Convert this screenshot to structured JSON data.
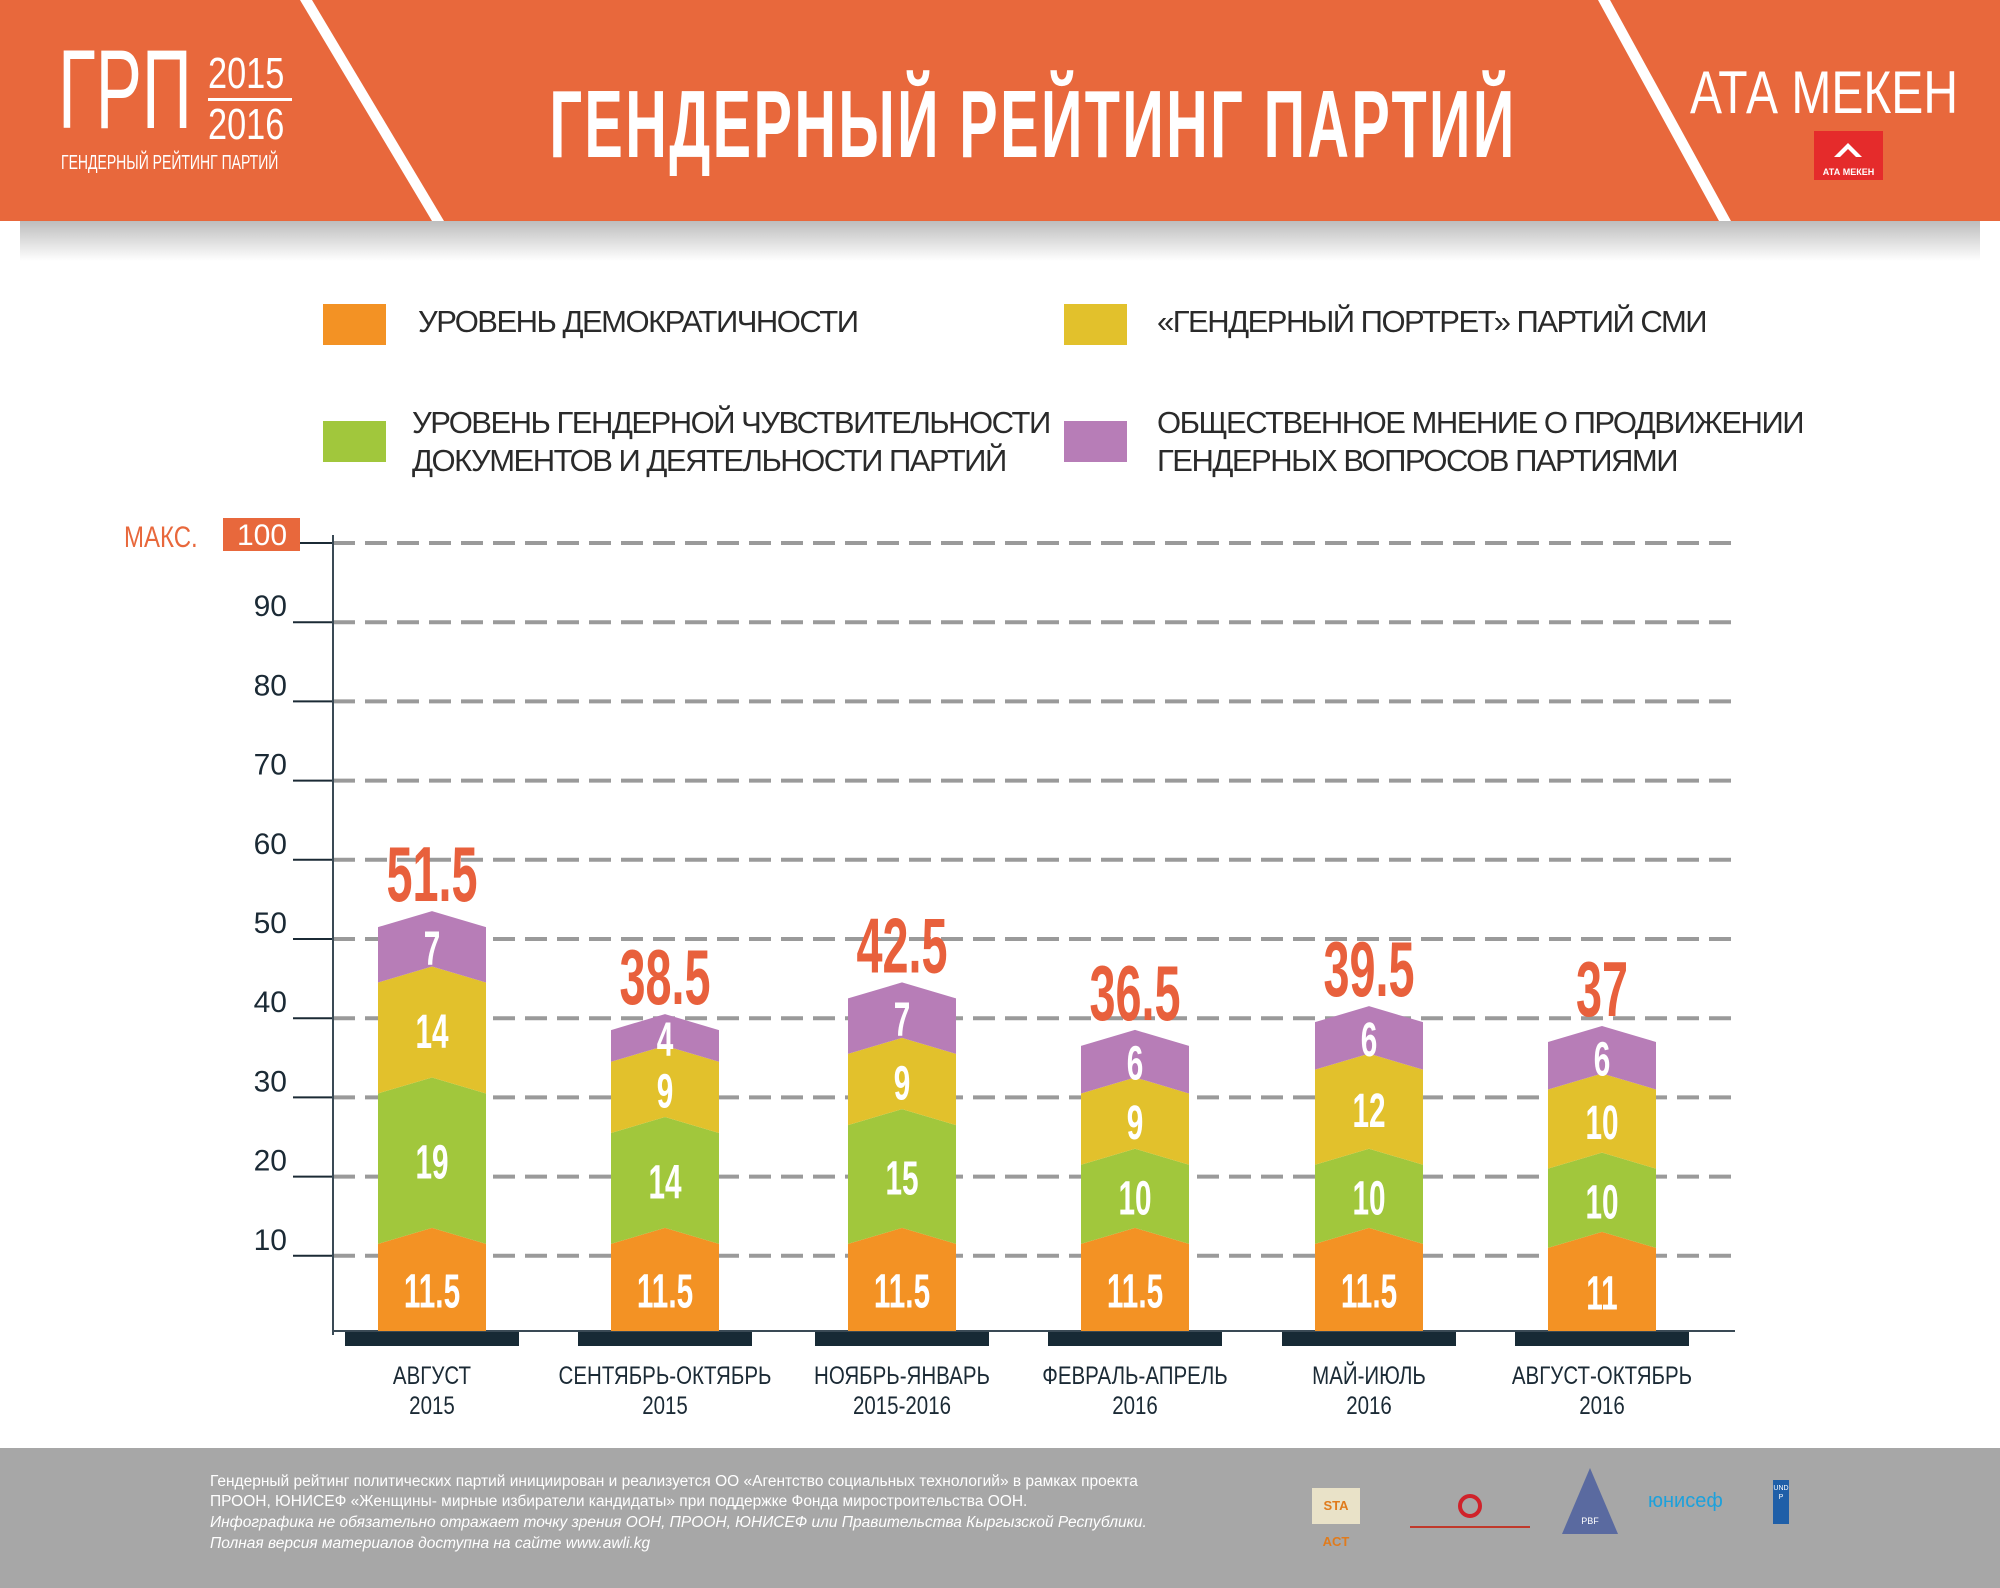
{
  "header": {
    "logo_abbr": "ГРП",
    "logo_year_top": "2015",
    "logo_year_bottom": "2016",
    "logo_subtitle": "ГЕНДЕРНЫЙ РЕЙТИНГ ПАРТИЙ",
    "title": "ГЕНДЕРНЫЙ РЕЙТИНГ ПАРТИЙ",
    "party_name": "АТА МЕКЕН",
    "party_logo_text": "АТА МЕКЕН"
  },
  "colors": {
    "header": "#e8683c",
    "total_label": "#e8603c",
    "democracy": "#f39224",
    "sensitivity": "#a1c73c",
    "media": "#e2c12c",
    "opinion": "#b77db7",
    "base": "#172a35",
    "footer": "#a7a7a7"
  },
  "chart_data": {
    "type": "bar",
    "stacked": true,
    "max_label": "МАКС.",
    "ylim": [
      0,
      100
    ],
    "yticks": [
      10,
      20,
      30,
      40,
      50,
      60,
      70,
      80,
      90,
      100
    ],
    "grid": true,
    "legend_position": "top",
    "categories": [
      [
        "АВГУСТ",
        "2015"
      ],
      [
        "СЕНТЯБРЬ-ОКТЯБРЬ",
        "2015"
      ],
      [
        "НОЯБРЬ-ЯНВАРЬ",
        "2015-2016"
      ],
      [
        "ФЕВРАЛЬ-АПРЕЛЬ",
        "2016"
      ],
      [
        "МАЙ-ИЮЛЬ",
        "2016"
      ],
      [
        "АВГУСТ-ОКТЯБРЬ",
        "2016"
      ]
    ],
    "series": [
      {
        "name": "УРОВЕНЬ ДЕМОКРАТИЧНОСТИ",
        "color": "#f39224",
        "values": [
          11.5,
          11.5,
          11.5,
          11.5,
          11.5,
          11
        ]
      },
      {
        "name": "УРОВЕНЬ ГЕНДЕРНОЙ ЧУВСТВИТЕЛЬНОСТИ ДОКУМЕНТОВ И ДЕЯТЕЛЬНОСТИ ПАРТИЙ",
        "color": "#a1c73c",
        "values": [
          19,
          14,
          15,
          10,
          10,
          10
        ]
      },
      {
        "name": "«ГЕНДЕРНЫЙ ПОРТРЕТ» ПАРТИЙ СМИ",
        "color": "#e2c12c",
        "values": [
          14,
          9,
          9,
          9,
          12,
          10
        ]
      },
      {
        "name": "ОБЩЕСТВЕННОЕ МНЕНИЕ О ПРОДВИЖЕНИИ ГЕНДЕРНЫХ ВОПРОСОВ ПАРТИЯМИ",
        "color": "#b77db7",
        "values": [
          7,
          4,
          7,
          6,
          6,
          6
        ]
      }
    ],
    "totals": [
      51.5,
      38.5,
      42.5,
      36.5,
      39.5,
      37
    ]
  },
  "legend": {
    "democracy": "УРОВЕНЬ ДЕМОКРАТИЧНОСТИ",
    "media": "«ГЕНДЕРНЫЙ ПОРТРЕТ» ПАРТИЙ СМИ",
    "sensitivity_1": "УРОВЕНЬ ГЕНДЕРНОЙ ЧУВСТВИТЕЛЬНОСТИ",
    "sensitivity_2": "ДОКУМЕНТОВ И ДЕЯТЕЛЬНОСТИ ПАРТИЙ",
    "opinion_1": "ОБЩЕСТВЕННОЕ МНЕНИЕ О ПРОДВИЖЕНИИ",
    "opinion_2": "ГЕНДЕРНЫХ ВОПРОСОВ ПАРТИЯМИ"
  },
  "footer": {
    "line1": "Гендерный рейтинг политических партий инициирован и реализуется ОО «Агентство социальных технологий» в рамках проекта",
    "line2": "ПРООН, ЮНИСЕФ «Женщины- мирные избиратели кандидаты» при поддержке Фонда миростроительства ООН.",
    "line3": "Инфографика не обязательно отражает точку зрения ООН, ПРООН, ЮНИСЕФ или Правительства Кыргызской Республики.",
    "line4": "Полная версия материалов доступна на сайте www.awli.kg",
    "logos": {
      "sta": "STA ACT",
      "pbf": "PBF",
      "unicef": "юнисеф",
      "undp": "UNDP"
    }
  }
}
